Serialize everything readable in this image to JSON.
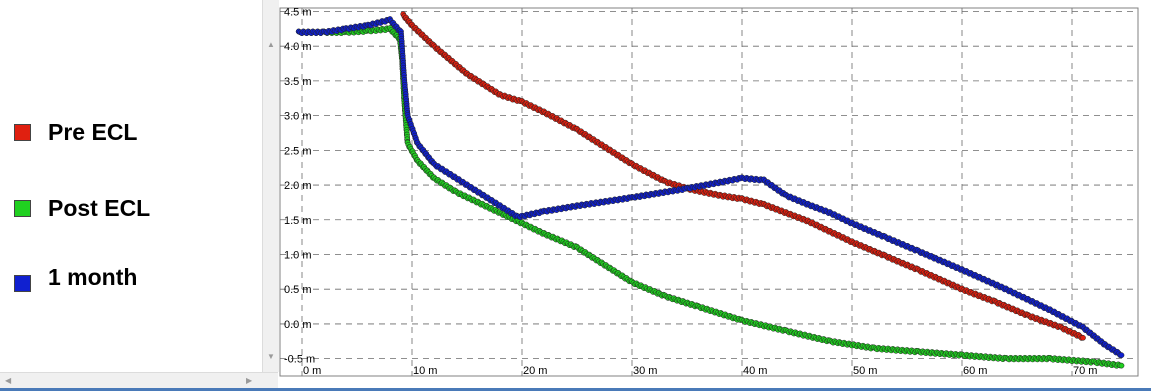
{
  "legend": {
    "items": [
      {
        "label": "Pre ECL",
        "color": "#e02010"
      },
      {
        "label": "Post ECL",
        "color": "#20d020"
      },
      {
        "label": "1 month",
        "color": "#1020d0"
      }
    ]
  },
  "scrollbar": {
    "up_icon": "▲",
    "down_icon": "▼",
    "left_icon": "◀",
    "right_icon": "▶"
  },
  "chart_data": {
    "type": "scatter",
    "title": "",
    "xlabel": "",
    "ylabel": "",
    "xlim": [
      -2,
      76
    ],
    "ylim": [
      -0.75,
      4.55
    ],
    "x_ticks": [
      0,
      10,
      20,
      30,
      40,
      50,
      60,
      70
    ],
    "x_tick_labels": [
      "0 m",
      "10 m",
      "20 m",
      "30 m",
      "40 m",
      "50 m",
      "60 m",
      "70 m"
    ],
    "y_ticks": [
      -0.5,
      0.0,
      0.5,
      1.0,
      1.5,
      2.0,
      2.5,
      3.0,
      3.5,
      4.0,
      4.5
    ],
    "y_tick_labels": [
      "-0.5 m",
      "0.0 m",
      "0.5 m",
      "1.0 m",
      "1.5 m",
      "2.0 m",
      "2.5 m",
      "3.0 m",
      "3.5 m",
      "4.0 m",
      "4.5 m"
    ],
    "grid": true,
    "legend_position": "left",
    "series": [
      {
        "name": "Pre ECL",
        "color": "#e02010",
        "x": [
          9.2,
          10,
          12,
          15,
          18,
          20,
          22,
          25,
          28,
          30,
          33,
          35,
          38,
          40,
          42,
          44,
          46,
          48,
          50,
          53,
          56,
          60,
          63,
          66,
          69,
          71
        ],
        "y": [
          4.45,
          4.3,
          4.0,
          3.6,
          3.3,
          3.2,
          3.05,
          2.8,
          2.5,
          2.3,
          2.05,
          1.95,
          1.85,
          1.8,
          1.72,
          1.6,
          1.48,
          1.33,
          1.18,
          0.98,
          0.78,
          0.5,
          0.32,
          0.12,
          -0.05,
          -0.2
        ]
      },
      {
        "name": "Post ECL",
        "color": "#20d020",
        "x": [
          -0.3,
          2,
          4,
          6,
          8,
          8.9,
          9.1,
          9.3,
          9.6,
          10.5,
          12,
          14,
          16,
          18,
          20,
          22,
          25,
          28,
          30,
          33,
          36,
          40,
          44,
          48,
          52,
          56,
          60,
          64,
          68,
          72,
          74.5
        ],
        "y": [
          4.2,
          4.2,
          4.2,
          4.22,
          4.25,
          4.1,
          3.8,
          3.2,
          2.6,
          2.35,
          2.1,
          1.9,
          1.75,
          1.6,
          1.45,
          1.3,
          1.1,
          0.8,
          0.6,
          0.4,
          0.25,
          0.05,
          -0.1,
          -0.25,
          -0.35,
          -0.4,
          -0.45,
          -0.5,
          -0.5,
          -0.55,
          -0.6
        ]
      },
      {
        "name": "1 month",
        "color": "#1020d0",
        "x": [
          -0.3,
          2,
          4,
          6,
          8,
          9.0,
          9.3,
          9.6,
          10.5,
          12,
          15,
          18,
          19.5,
          20,
          22,
          25,
          30,
          35,
          40,
          42,
          44,
          46,
          48,
          50,
          53,
          56,
          60,
          64,
          68,
          71,
          73,
          74.5
        ],
        "y": [
          4.2,
          4.2,
          4.25,
          4.3,
          4.38,
          4.2,
          3.5,
          3.0,
          2.6,
          2.3,
          2.0,
          1.7,
          1.55,
          1.55,
          1.62,
          1.7,
          1.82,
          1.95,
          2.1,
          2.07,
          1.85,
          1.72,
          1.6,
          1.45,
          1.25,
          1.05,
          0.78,
          0.5,
          0.2,
          -0.05,
          -0.3,
          -0.45
        ]
      }
    ]
  }
}
